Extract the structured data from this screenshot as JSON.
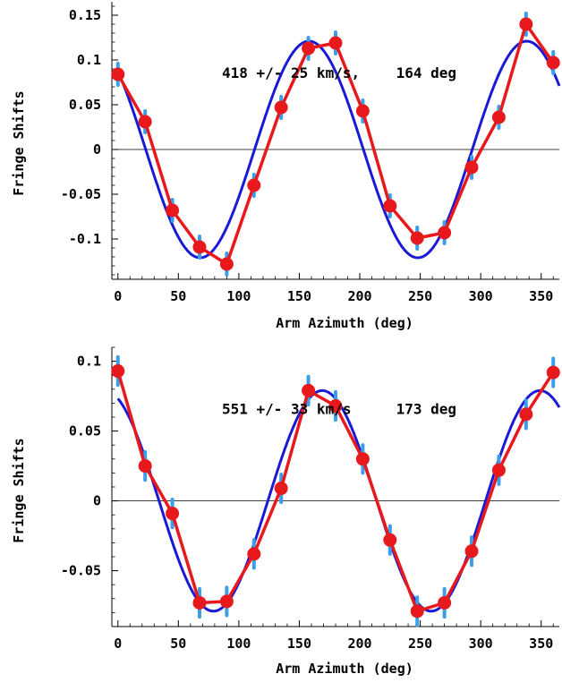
{
  "chart_data": [
    {
      "type": "line",
      "xlabel": "Arm Azimuth (deg)",
      "ylabel": "Fringe Shifts",
      "xlim": [
        -5,
        365
      ],
      "ylim": [
        -0.145,
        0.165
      ],
      "xticks": [
        0,
        50,
        100,
        150,
        200,
        250,
        300,
        350
      ],
      "xtick_labels": [
        "0",
        "50",
        "100",
        "150",
        "200",
        "250",
        "300",
        "350"
      ],
      "yticks": [
        -0.1,
        -0.05,
        0,
        0.05,
        0.1,
        0.15
      ],
      "ytick_labels": [
        "-0.1",
        "-0.05",
        "0",
        "0.05",
        "0.1",
        "0.15"
      ],
      "annotations": [
        {
          "text": "418 +/-  25 km/s,",
          "x": 86,
          "y": 0.086
        },
        {
          "text": "164 deg",
          "x": 230,
          "y": 0.086
        }
      ],
      "points": {
        "x": [
          0,
          22.5,
          45,
          67.5,
          90,
          112.5,
          135,
          157.5,
          180,
          202.5,
          225,
          247.5,
          270,
          292.5,
          315,
          337.5,
          360
        ],
        "y": [
          0.084,
          0.031,
          -0.068,
          -0.109,
          -0.128,
          -0.04,
          0.047,
          0.113,
          0.119,
          0.043,
          -0.063,
          -0.099,
          -0.093,
          -0.02,
          0.036,
          0.14,
          0.097
        ],
        "error": [
          0.012,
          0.012,
          0.012,
          0.012,
          0.012,
          0.012,
          0.012,
          0.012,
          0.012,
          0.012,
          0.012,
          0.012,
          0.012,
          0.012,
          0.012,
          0.012,
          0.012
        ]
      },
      "fit": {
        "amplitude": 0.121,
        "phase_deg": 158,
        "offset": 0
      }
    },
    {
      "type": "line",
      "xlabel": "Arm Azimuth (deg)",
      "ylabel": "Fringe Shifts",
      "xlim": [
        -5,
        365
      ],
      "ylim": [
        -0.09,
        0.11
      ],
      "xticks": [
        0,
        50,
        100,
        150,
        200,
        250,
        300,
        350
      ],
      "xtick_labels": [
        "0",
        "50",
        "100",
        "150",
        "200",
        "250",
        "300",
        "350"
      ],
      "yticks": [
        -0.05,
        0,
        0.05,
        0.1
      ],
      "ytick_labels": [
        "-0.05",
        "0",
        "0.05",
        "0.1"
      ],
      "annotations": [
        {
          "text": "551 +/-  33 km/s",
          "x": 86,
          "y": 0.066
        },
        {
          "text": "173 deg",
          "x": 230,
          "y": 0.066
        }
      ],
      "points": {
        "x": [
          0,
          22.5,
          45,
          67.5,
          90,
          112.5,
          135,
          157.5,
          180,
          202.5,
          225,
          247.5,
          270,
          292.5,
          315,
          337.5,
          360
        ],
        "y": [
          0.093,
          0.025,
          -0.009,
          -0.073,
          -0.072,
          -0.038,
          0.009,
          0.079,
          0.068,
          0.03,
          -0.028,
          -0.079,
          -0.073,
          -0.036,
          0.022,
          0.062,
          0.092
        ],
        "error": [
          0.01,
          0.01,
          0.01,
          0.01,
          0.01,
          0.01,
          0.01,
          0.01,
          0.01,
          0.01,
          0.01,
          0.01,
          0.01,
          0.01,
          0.01,
          0.01,
          0.01
        ]
      },
      "fit": {
        "amplitude": 0.079,
        "phase_deg": 169,
        "offset": 0
      }
    }
  ],
  "colors": {
    "fit_line": "#1a1ad6",
    "data_line": "#e8191c",
    "error_bar": "#3a9ee8",
    "axis": "#000000",
    "zero_line": "#000000"
  }
}
